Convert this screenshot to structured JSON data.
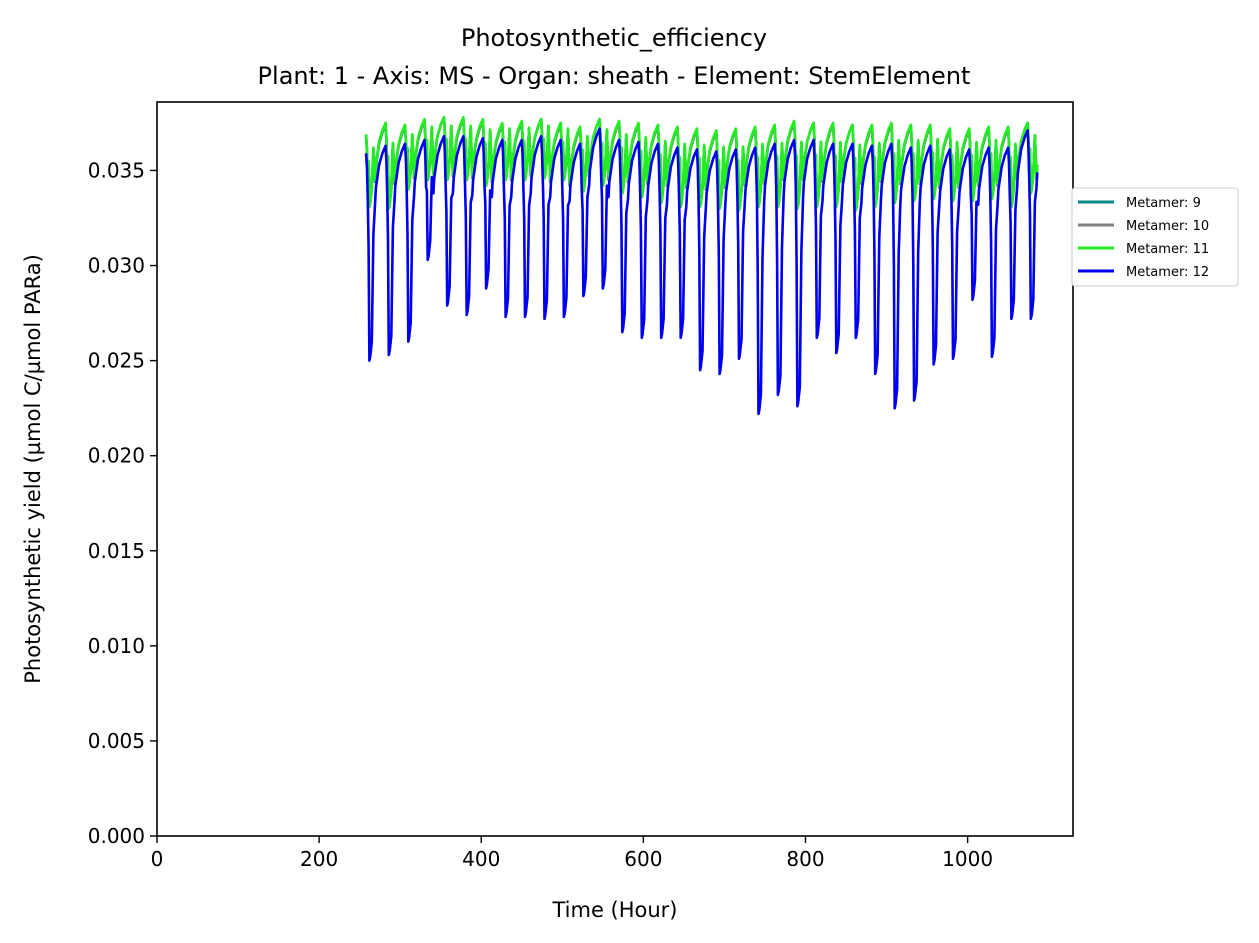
{
  "chart_data": {
    "type": "line",
    "title_line1": "Photosynthetic_efficiency",
    "title_line2": "Plant: 1 - Axis: MS - Organ: sheath - Element: StemElement",
    "xlabel": "Time (Hour)",
    "ylabel": "Photosynthetic yield (µmol C/µmol PARa)",
    "xlim": [
      0,
      1130
    ],
    "ylim": [
      0,
      0.0386
    ],
    "xticks": [
      0,
      200,
      400,
      600,
      800,
      1000
    ],
    "xtick_labels": [
      "0",
      "200",
      "400",
      "600",
      "800",
      "1000"
    ],
    "yticks": [
      0,
      0.005,
      0.01,
      0.015,
      0.02,
      0.025,
      0.03,
      0.035
    ],
    "ytick_labels": [
      "0.000",
      "0.005",
      "0.010",
      "0.015",
      "0.020",
      "0.025",
      "0.030",
      "0.035"
    ],
    "grid": false,
    "legend_position": "outside-right",
    "period_hours": 24,
    "series": [
      {
        "name": "Metamer: 9",
        "color": "#008b80",
        "x_start": 258,
        "x_end": 1086,
        "day_peaks": [
          0.0368,
          0.0374,
          0.0373,
          0.0376,
          0.0378,
          0.0377,
          0.0376,
          0.0374,
          0.0375,
          0.0377,
          0.0374,
          0.0372,
          0.0377,
          0.0375,
          0.0374,
          0.0373,
          0.0372,
          0.0371,
          0.037,
          0.0371,
          0.0372,
          0.0373,
          0.0375,
          0.0375,
          0.0374,
          0.0374,
          0.0373,
          0.0374,
          0.0373,
          0.0373,
          0.0371,
          0.0371,
          0.0372,
          0.0372,
          0.0375
        ],
        "day_troughs": [
          0.0331,
          0.033,
          0.034,
          0.0345,
          0.0345,
          0.0345,
          0.0342,
          0.0345,
          0.0345,
          0.0346,
          0.0345,
          0.0339,
          0.0342,
          0.0338,
          0.0336,
          0.0333,
          0.0331,
          0.0331,
          0.033,
          0.0329,
          0.0331,
          0.0331,
          0.033,
          0.0331,
          0.0331,
          0.0329,
          0.0331,
          0.0333,
          0.0334,
          0.0335,
          0.0334,
          0.0334,
          0.0335,
          0.0331,
          0.0338
        ]
      },
      {
        "name": "Metamer: 10",
        "color": "#808080",
        "x_start": 258,
        "x_end": 1086,
        "day_peaks": [
          0.0368,
          0.0375,
          0.0373,
          0.0376,
          0.0378,
          0.0377,
          0.0376,
          0.0374,
          0.0375,
          0.0377,
          0.0374,
          0.0372,
          0.0377,
          0.0375,
          0.0374,
          0.0373,
          0.0372,
          0.0371,
          0.037,
          0.0371,
          0.0372,
          0.0373,
          0.0375,
          0.0375,
          0.0374,
          0.0374,
          0.0373,
          0.0374,
          0.0373,
          0.0373,
          0.0371,
          0.0371,
          0.0372,
          0.0372,
          0.0375
        ],
        "day_troughs": [
          0.0331,
          0.033,
          0.034,
          0.0345,
          0.0345,
          0.0345,
          0.0342,
          0.0345,
          0.0345,
          0.0346,
          0.0345,
          0.0339,
          0.0342,
          0.0338,
          0.0336,
          0.0333,
          0.0331,
          0.0331,
          0.033,
          0.0329,
          0.0331,
          0.0331,
          0.033,
          0.0331,
          0.0331,
          0.0329,
          0.0331,
          0.0333,
          0.0334,
          0.0335,
          0.0334,
          0.0334,
          0.0335,
          0.0331,
          0.0338
        ]
      },
      {
        "name": "Metamer: 11",
        "color": "#22ee22",
        "x_start": 258,
        "x_end": 1086,
        "day_peaks": [
          0.0369,
          0.0375,
          0.0374,
          0.0377,
          0.0378,
          0.0378,
          0.0377,
          0.0375,
          0.0376,
          0.0377,
          0.0375,
          0.0373,
          0.0377,
          0.0376,
          0.0375,
          0.0374,
          0.0373,
          0.0372,
          0.0371,
          0.0372,
          0.0373,
          0.0374,
          0.0376,
          0.0375,
          0.0375,
          0.0374,
          0.0374,
          0.0375,
          0.0374,
          0.0374,
          0.0372,
          0.0372,
          0.0373,
          0.0373,
          0.0375
        ],
        "day_troughs": [
          0.0331,
          0.033,
          0.034,
          0.0345,
          0.0345,
          0.0345,
          0.0342,
          0.0345,
          0.0345,
          0.0346,
          0.0345,
          0.0339,
          0.0342,
          0.0338,
          0.0336,
          0.0333,
          0.0331,
          0.0331,
          0.033,
          0.0329,
          0.0331,
          0.0331,
          0.033,
          0.0331,
          0.0331,
          0.0329,
          0.0331,
          0.0333,
          0.0334,
          0.0335,
          0.0334,
          0.0334,
          0.0335,
          0.0331,
          0.0338
        ]
      },
      {
        "name": "Metamer: 12",
        "color": "#0000ee",
        "x_start": 258,
        "x_end": 1086,
        "day_peaks": [
          0.0359,
          0.0363,
          0.0364,
          0.0366,
          0.0368,
          0.0368,
          0.0367,
          0.0366,
          0.0366,
          0.0368,
          0.0366,
          0.0364,
          0.0372,
          0.0366,
          0.0365,
          0.0364,
          0.0362,
          0.0361,
          0.036,
          0.0361,
          0.0362,
          0.0364,
          0.0366,
          0.0366,
          0.0364,
          0.0364,
          0.0363,
          0.0364,
          0.0362,
          0.0363,
          0.0361,
          0.0361,
          0.0362,
          0.0362,
          0.0371
        ],
        "day_troughs": [
          0.025,
          0.0253,
          0.026,
          0.0303,
          0.0279,
          0.0274,
          0.0288,
          0.0273,
          0.0273,
          0.0272,
          0.0273,
          0.0284,
          0.0288,
          0.0265,
          0.0262,
          0.0262,
          0.0262,
          0.0245,
          0.0243,
          0.0251,
          0.0222,
          0.0232,
          0.0226,
          0.0262,
          0.0254,
          0.0262,
          0.0243,
          0.0225,
          0.0229,
          0.0248,
          0.0251,
          0.0282,
          0.0252,
          0.0272,
          0.0272
        ]
      }
    ]
  }
}
